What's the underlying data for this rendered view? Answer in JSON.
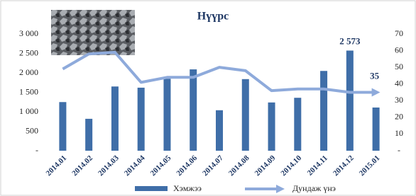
{
  "chart_data": {
    "type": "bar-line",
    "title": "Нүүрс",
    "categories": [
      "2014.01",
      "2014.02",
      "2014.03",
      "2014.04",
      "2014.05",
      "2014.06",
      "2014.07",
      "2014.08",
      "2014.09",
      "2014.10",
      "2014.11",
      "2014.12",
      "2015.01"
    ],
    "series": [
      {
        "name": "Хэмжээ",
        "type": "bar",
        "color": "#3f6ea8",
        "values": [
          1250,
          820,
          1650,
          1620,
          1850,
          2090,
          1040,
          1840,
          1240,
          1360,
          2050,
          2573,
          1110
        ],
        "value_labels": [
          null,
          null,
          null,
          null,
          null,
          null,
          null,
          null,
          null,
          null,
          null,
          "2 573",
          null
        ]
      },
      {
        "name": "Дундаж үнэ",
        "type": "line",
        "axis": "y2",
        "color": "#8eaadb",
        "values": [
          49,
          58,
          59,
          41,
          44,
          44,
          50,
          48,
          36,
          37,
          37,
          35,
          35
        ],
        "value_labels": [
          null,
          null,
          null,
          null,
          null,
          null,
          null,
          null,
          null,
          null,
          null,
          null,
          "35"
        ]
      }
    ],
    "ylim": [
      0,
      3000
    ],
    "yticks": [
      {
        "value": 0,
        "label": "-"
      },
      500,
      {
        "value": 1000,
        "label": "1 000"
      },
      {
        "value": 1500,
        "label": "1 500"
      },
      {
        "value": 2000,
        "label": "2 000"
      },
      {
        "value": 2500,
        "label": "2 500"
      },
      {
        "value": 3000,
        "label": "3 000"
      }
    ],
    "y2lim": [
      0,
      70
    ],
    "y2ticks": [
      {
        "value": 0,
        "label": "-"
      },
      10,
      20,
      30,
      40,
      50,
      60,
      70
    ],
    "grid": false,
    "legend": "bottom"
  }
}
